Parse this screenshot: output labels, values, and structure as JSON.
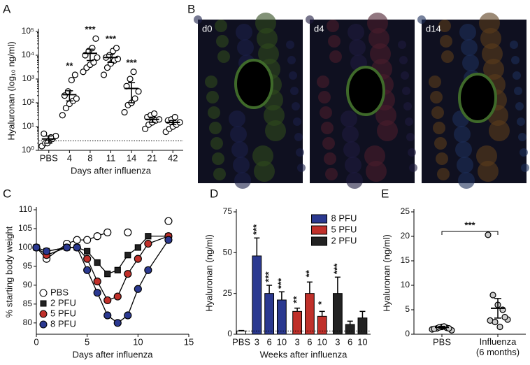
{
  "chart_data": [
    {
      "type": "strip",
      "panel": "A",
      "ylabel": "Hyaluronan (log₁₀ ng/ml)",
      "xlabel": "Days after influenza",
      "log_scale": true,
      "ylim": [
        1,
        100000
      ],
      "yticks": [
        {
          "value": 1,
          "label": "10⁰"
        },
        {
          "value": 10,
          "label": "10¹"
        },
        {
          "value": 100,
          "label": "10²"
        },
        {
          "value": 1000,
          "label": "10³"
        },
        {
          "value": 10000,
          "label": "10⁴"
        },
        {
          "value": 100000,
          "label": "10⁵"
        }
      ],
      "categories": [
        "PBS",
        "4",
        "8",
        "11",
        "14",
        "21",
        "42"
      ],
      "points": [
        [
          1.5,
          2,
          2.5,
          3,
          4,
          5,
          2,
          3.5
        ],
        [
          30,
          60,
          90,
          120,
          150,
          200,
          300,
          900,
          1500
        ],
        [
          2000,
          3000,
          4000,
          5000,
          8000,
          10000,
          15000,
          20000,
          50000
        ],
        [
          1500,
          3000,
          4500,
          6000,
          7000,
          8000,
          10000,
          15000,
          20000
        ],
        [
          40,
          80,
          100,
          150,
          300,
          500,
          1000,
          2000
        ],
        [
          8,
          12,
          15,
          18,
          20,
          25,
          30,
          35
        ],
        [
          6,
          8,
          10,
          12,
          15,
          18,
          20,
          25
        ]
      ],
      "means": [
        3,
        220,
        12000,
        8000,
        400,
        20,
        15
      ],
      "errors": [
        1,
        100,
        6000,
        3000,
        300,
        5,
        3
      ],
      "annotations": [
        null,
        "**",
        "***",
        "***",
        "***",
        null,
        null
      ],
      "reference_line": 2.5,
      "color": "#ffffff"
    },
    {
      "type": "image",
      "panel": "B",
      "labels": [
        "d0",
        "d4",
        "d14"
      ]
    },
    {
      "type": "line",
      "panel": "C",
      "ylabel": "% starting body weight",
      "xlabel": "Days after influenza",
      "xlim": [
        0,
        15
      ],
      "xticks": [
        0,
        5,
        10,
        15
      ],
      "ylim": [
        77,
        110
      ],
      "yticks": [
        80,
        85,
        90,
        95,
        100,
        105,
        110
      ],
      "x": [
        0,
        1,
        3,
        4,
        5,
        6,
        7,
        8,
        9,
        10,
        11,
        13
      ],
      "series": [
        {
          "name": "PBS",
          "color": "#ffffff",
          "marker": "circle",
          "values": [
            100,
            97,
            101,
            102,
            102,
            103,
            104,
            null,
            104,
            null,
            null,
            107
          ]
        },
        {
          "name": "2 PFU",
          "color": "#222222",
          "marker": "square",
          "values": [
            100,
            99,
            100,
            100,
            99,
            96,
            93,
            94,
            98,
            100,
            103,
            103
          ]
        },
        {
          "name": "5 PFU",
          "color": "#c0302a",
          "marker": "circle",
          "values": [
            100,
            98,
            100,
            100,
            97,
            91,
            86,
            87,
            93,
            97,
            101,
            103
          ]
        },
        {
          "name": "8 PFU",
          "color": "#2b3990",
          "marker": "circle",
          "values": [
            100,
            99,
            100,
            100,
            94,
            88,
            82,
            80,
            82,
            89,
            94,
            102
          ]
        }
      ],
      "legend": "lower-left"
    },
    {
      "type": "bar",
      "panel": "D",
      "ylabel": "Hyaluronan (ng/ml)",
      "xlabel": "Weeks after influenza",
      "ylim": [
        0,
        75
      ],
      "yticks": [
        0,
        25,
        50,
        75
      ],
      "categories": [
        "PBS",
        "3",
        "6",
        "10",
        "3",
        "6",
        "10",
        "3",
        "6",
        "10"
      ],
      "values": [
        2,
        48,
        25,
        21,
        14,
        25,
        11,
        25,
        6,
        10
      ],
      "errors": [
        0.3,
        11,
        5,
        5,
        2,
        7,
        3,
        10,
        2,
        4
      ],
      "colors": [
        "#ffffff",
        "#2b3990",
        "#2b3990",
        "#2b3990",
        "#c0302a",
        "#c0302a",
        "#c0302a",
        "#222222",
        "#222222",
        "#222222"
      ],
      "annotations": [
        null,
        "***",
        "***",
        "***",
        "**",
        "**",
        "*",
        "***",
        null,
        null
      ],
      "legend_items": [
        {
          "name": "8 PFU",
          "color": "#2b3990"
        },
        {
          "name": "5 PFU",
          "color": "#c0302a"
        },
        {
          "name": "2 PFU",
          "color": "#222222"
        }
      ],
      "reference_line": 2
    },
    {
      "type": "strip",
      "panel": "E",
      "ylabel": "Hyaluronan (ng/ml)",
      "log_scale": false,
      "ylim": [
        0,
        25
      ],
      "yticks": [
        0,
        5,
        10,
        15,
        20,
        25
      ],
      "categories": [
        "PBS",
        "Influenza\n(6 months)"
      ],
      "points": [
        [
          1,
          1.2,
          1.5,
          1.3,
          0.8,
          1.1,
          1.4,
          1.6,
          1.2
        ],
        [
          20.3,
          8,
          6,
          5,
          3,
          2.8,
          2.5,
          1.5,
          3.5
        ]
      ],
      "means": [
        1.4,
        5.3
      ],
      "errors": [
        0.2,
        2
      ],
      "bracket": "***",
      "color": "#cccccc"
    }
  ]
}
